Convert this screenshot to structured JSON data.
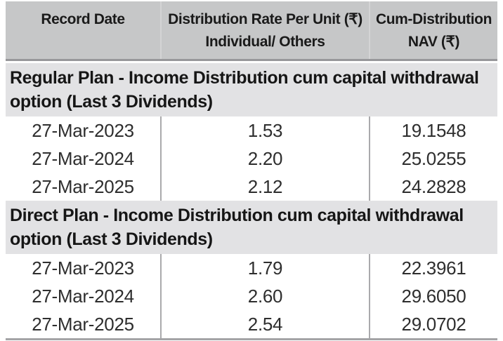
{
  "table": {
    "columns": [
      {
        "line1": "Record Date",
        "line2": ""
      },
      {
        "line1": "Distribution Rate Per Unit (₹)",
        "line2": "Individual/ Others"
      },
      {
        "line1": "Cum-Distribution",
        "line2": "NAV (₹)"
      }
    ],
    "currency_symbol": "₹",
    "sections": [
      {
        "title": "Regular Plan - Income Distribution cum capital withdrawal option (Last 3 Dividends)",
        "rows": [
          {
            "record_date": "27-Mar-2023",
            "rate": "1.53",
            "nav": "19.1548"
          },
          {
            "record_date": "27-Mar-2024",
            "rate": "2.20",
            "nav": "25.0255"
          },
          {
            "record_date": "27-Mar-2025",
            "rate": "2.12",
            "nav": "24.2828"
          }
        ]
      },
      {
        "title": "Direct Plan - Income Distribution cum capital withdrawal option (Last 3 Dividends)",
        "rows": [
          {
            "record_date": "27-Mar-2023",
            "rate": "1.79",
            "nav": "22.3961"
          },
          {
            "record_date": "27-Mar-2024",
            "rate": "2.60",
            "nav": "29.6050"
          },
          {
            "record_date": "27-Mar-2025",
            "rate": "2.54",
            "nav": "29.0702"
          }
        ]
      }
    ]
  },
  "colors": {
    "header_background": "#c6c7c8",
    "section_background": "#e2e2e4",
    "divider_gray": "#aaaaac",
    "header_underline": "#97979a",
    "bottom_border": "#a4a4a6",
    "text_dark": "#1a1a1a",
    "data_text": "#2e2e2e"
  }
}
